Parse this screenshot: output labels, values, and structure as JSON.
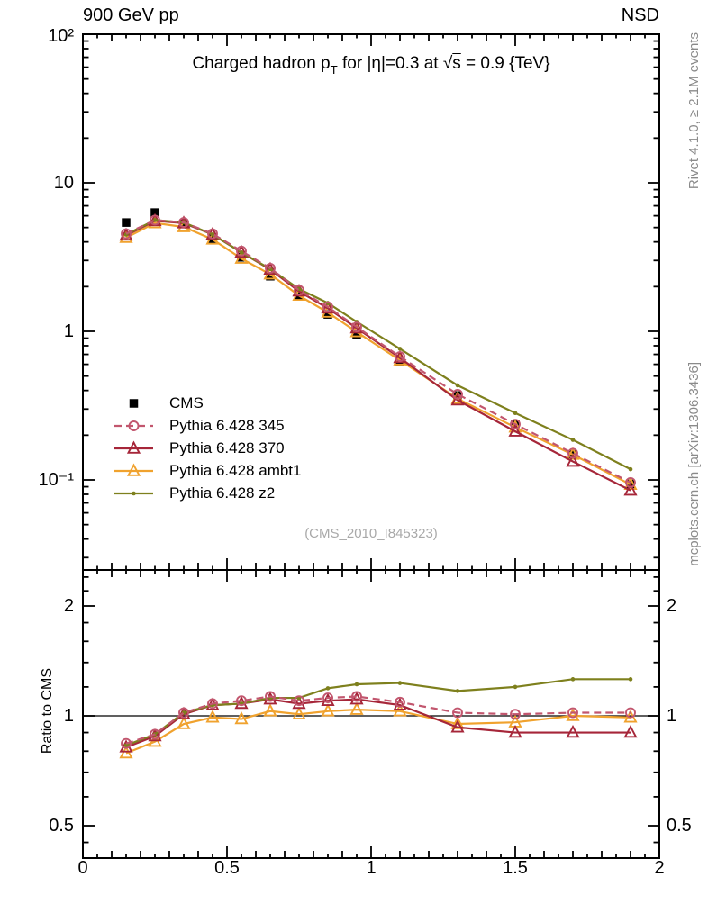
{
  "header": {
    "left": "900 GeV pp",
    "right": "NSD"
  },
  "title": {
    "pre": "Charged hadron p",
    "sub": "T",
    "mid": " for |η|=0.3 at ",
    "sqrt": "√",
    "sqrt_arg": "s",
    "post": " = 0.9 {TeV}"
  },
  "watermark": "(CMS_2010_I845323)",
  "side_notes": {
    "top": "Rivet 4.1.0, ≥ 2.1M events",
    "bottom": "mcplots.cern.ch [arXiv:1306.3436]"
  },
  "axes": {
    "x_tick_labels": [
      "0",
      "0.5",
      "1",
      "1.5",
      "2"
    ],
    "main_y_tick_labels": [
      "10²",
      "10",
      "1",
      "10⁻¹"
    ],
    "ratio_y_tick_labels": [
      "2",
      "1",
      "0.5"
    ]
  },
  "colors": {
    "axis": "#000000",
    "watermark": "#a9a9a9",
    "side_note": "#8a8a8a",
    "cms": "#000000",
    "pythia_345": "#c2566e",
    "pythia_370": "#a62639",
    "pythia_ambt1": "#f0a22e",
    "pythia_z2": "#7e801d"
  },
  "chart_data": {
    "type": "line",
    "title": "Charged hadron p_T for |η|=0.3 at √s = 0.9 {TeV}",
    "xlabel": "",
    "x_range": [
      0,
      2
    ],
    "x_ticks": [
      0,
      0.5,
      1,
      1.5,
      2
    ],
    "x_values": [
      0.15,
      0.25,
      0.35,
      0.45,
      0.55,
      0.65,
      0.75,
      0.85,
      0.95,
      1.1,
      1.3,
      1.5,
      1.7,
      1.9
    ],
    "legend_position": "middle-left",
    "grid": false,
    "main_panel": {
      "y_scale": "log",
      "y_range": [
        0.0248,
        100
      ],
      "y_tick_values": [
        100,
        10,
        1,
        0.1
      ],
      "series": [
        {
          "name": "CMS",
          "color": "#000000",
          "marker": "filled-square",
          "line": "none",
          "values": [
            5.4,
            6.3,
            5.3,
            4.2,
            3.15,
            2.35,
            1.72,
            1.3,
            0.95,
            0.62,
            0.37,
            0.235,
            0.148,
            0.094
          ]
        },
        {
          "name": "Pythia 6.428 345",
          "color": "#c2566e",
          "marker": "open-circle",
          "line": "dashed",
          "values": [
            4.54,
            5.61,
            5.41,
            4.54,
            3.47,
            2.66,
            1.89,
            1.46,
            1.07,
            0.676,
            0.377,
            0.237,
            0.151,
            0.096
          ]
        },
        {
          "name": "Pythia 6.428 370",
          "color": "#a62639",
          "marker": "open-triangle",
          "line": "solid",
          "values": [
            4.43,
            5.54,
            5.35,
            4.49,
            3.4,
            2.61,
            1.86,
            1.43,
            1.05,
            0.663,
            0.344,
            0.212,
            0.133,
            0.085
          ]
        },
        {
          "name": "Pythia 6.428 ambt1",
          "color": "#f0a22e",
          "marker": "open-triangle",
          "line": "solid",
          "values": [
            4.27,
            5.36,
            5.04,
            4.16,
            3.09,
            2.42,
            1.74,
            1.34,
            0.99,
            0.639,
            0.352,
            0.226,
            0.148,
            0.093
          ]
        },
        {
          "name": "Pythia 6.428 z2",
          "color": "#7e801d",
          "marker": "dot",
          "line": "solid",
          "values": [
            4.48,
            5.61,
            5.41,
            4.49,
            3.4,
            2.63,
            1.93,
            1.55,
            1.16,
            0.763,
            0.433,
            0.282,
            0.186,
            0.118
          ]
        }
      ]
    },
    "ratio_panel": {
      "ylabel": "Ratio to CMS",
      "y_scale": "log",
      "y_range": [
        0.407,
        2.51
      ],
      "y_tick_values": [
        2,
        1,
        0.5
      ],
      "reference_line": 1,
      "series": [
        {
          "name": "Pythia 6.428 345",
          "color": "#c2566e",
          "marker": "open-circle",
          "line": "dashed",
          "values": [
            0.84,
            0.89,
            1.02,
            1.08,
            1.1,
            1.13,
            1.1,
            1.12,
            1.13,
            1.09,
            1.02,
            1.01,
            1.02,
            1.02
          ]
        },
        {
          "name": "Pythia 6.428 370",
          "color": "#a62639",
          "marker": "open-triangle",
          "line": "solid",
          "values": [
            0.82,
            0.88,
            1.01,
            1.07,
            1.08,
            1.11,
            1.08,
            1.1,
            1.11,
            1.07,
            0.93,
            0.9,
            0.9,
            0.9
          ]
        },
        {
          "name": "Pythia 6.428 ambt1",
          "color": "#f0a22e",
          "marker": "open-triangle",
          "line": "solid",
          "values": [
            0.79,
            0.85,
            0.95,
            0.99,
            0.98,
            1.03,
            1.01,
            1.03,
            1.04,
            1.03,
            0.95,
            0.96,
            1.0,
            0.99
          ]
        },
        {
          "name": "Pythia 6.428 z2",
          "color": "#7e801d",
          "marker": "dot",
          "line": "solid",
          "values": [
            0.83,
            0.89,
            1.02,
            1.07,
            1.08,
            1.12,
            1.12,
            1.19,
            1.22,
            1.23,
            1.17,
            1.2,
            1.26,
            1.26
          ]
        }
      ]
    }
  }
}
